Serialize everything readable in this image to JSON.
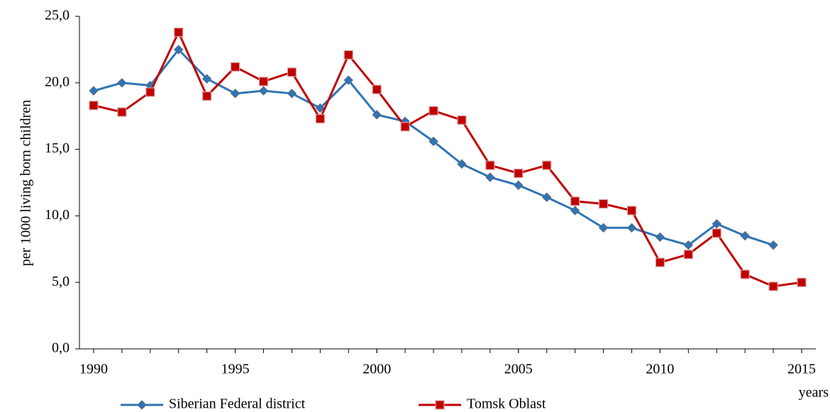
{
  "chart_data": {
    "type": "line",
    "y_label": "per 1000 living born children",
    "x_label": "years",
    "x": [
      1990,
      1991,
      1992,
      1993,
      1994,
      1995,
      1996,
      1997,
      1998,
      1999,
      2000,
      2001,
      2002,
      2003,
      2004,
      2005,
      2006,
      2007,
      2008,
      2009,
      2010,
      2011,
      2012,
      2013,
      2014,
      2015
    ],
    "series": [
      {
        "name": "Siberian Federal district",
        "color": "#2e75b6",
        "marker": "diamond",
        "values": [
          19.4,
          20.0,
          19.8,
          22.5,
          20.3,
          19.2,
          19.4,
          19.2,
          18.1,
          20.2,
          17.6,
          17.1,
          15.6,
          13.9,
          12.9,
          12.3,
          11.4,
          10.4,
          9.1,
          9.1,
          8.4,
          7.8,
          9.4,
          8.5,
          7.8,
          null
        ]
      },
      {
        "name": "Tomsk Oblast",
        "color": "#c00000",
        "marker": "square",
        "values": [
          18.3,
          17.8,
          19.3,
          23.8,
          19.0,
          21.2,
          20.1,
          20.8,
          17.3,
          22.1,
          19.5,
          16.7,
          17.9,
          17.2,
          13.8,
          13.2,
          13.8,
          11.1,
          10.9,
          10.4,
          6.5,
          7.1,
          8.7,
          5.6,
          4.7,
          5.0
        ]
      }
    ],
    "xlim": [
      1989.5,
      2015.5
    ],
    "xticks": [
      1990,
      1995,
      2000,
      2005,
      2010,
      2015
    ],
    "ylim": [
      0,
      25
    ],
    "yticks": [
      {
        "value": 0,
        "label": "0,0"
      },
      {
        "value": 5,
        "label": "5,0"
      },
      {
        "value": 10,
        "label": "10,0"
      },
      {
        "value": 15,
        "label": "15,0"
      },
      {
        "value": 20,
        "label": "20,0"
      },
      {
        "value": 25,
        "label": "25,0"
      }
    ],
    "grid": false,
    "legend": "bottom"
  }
}
